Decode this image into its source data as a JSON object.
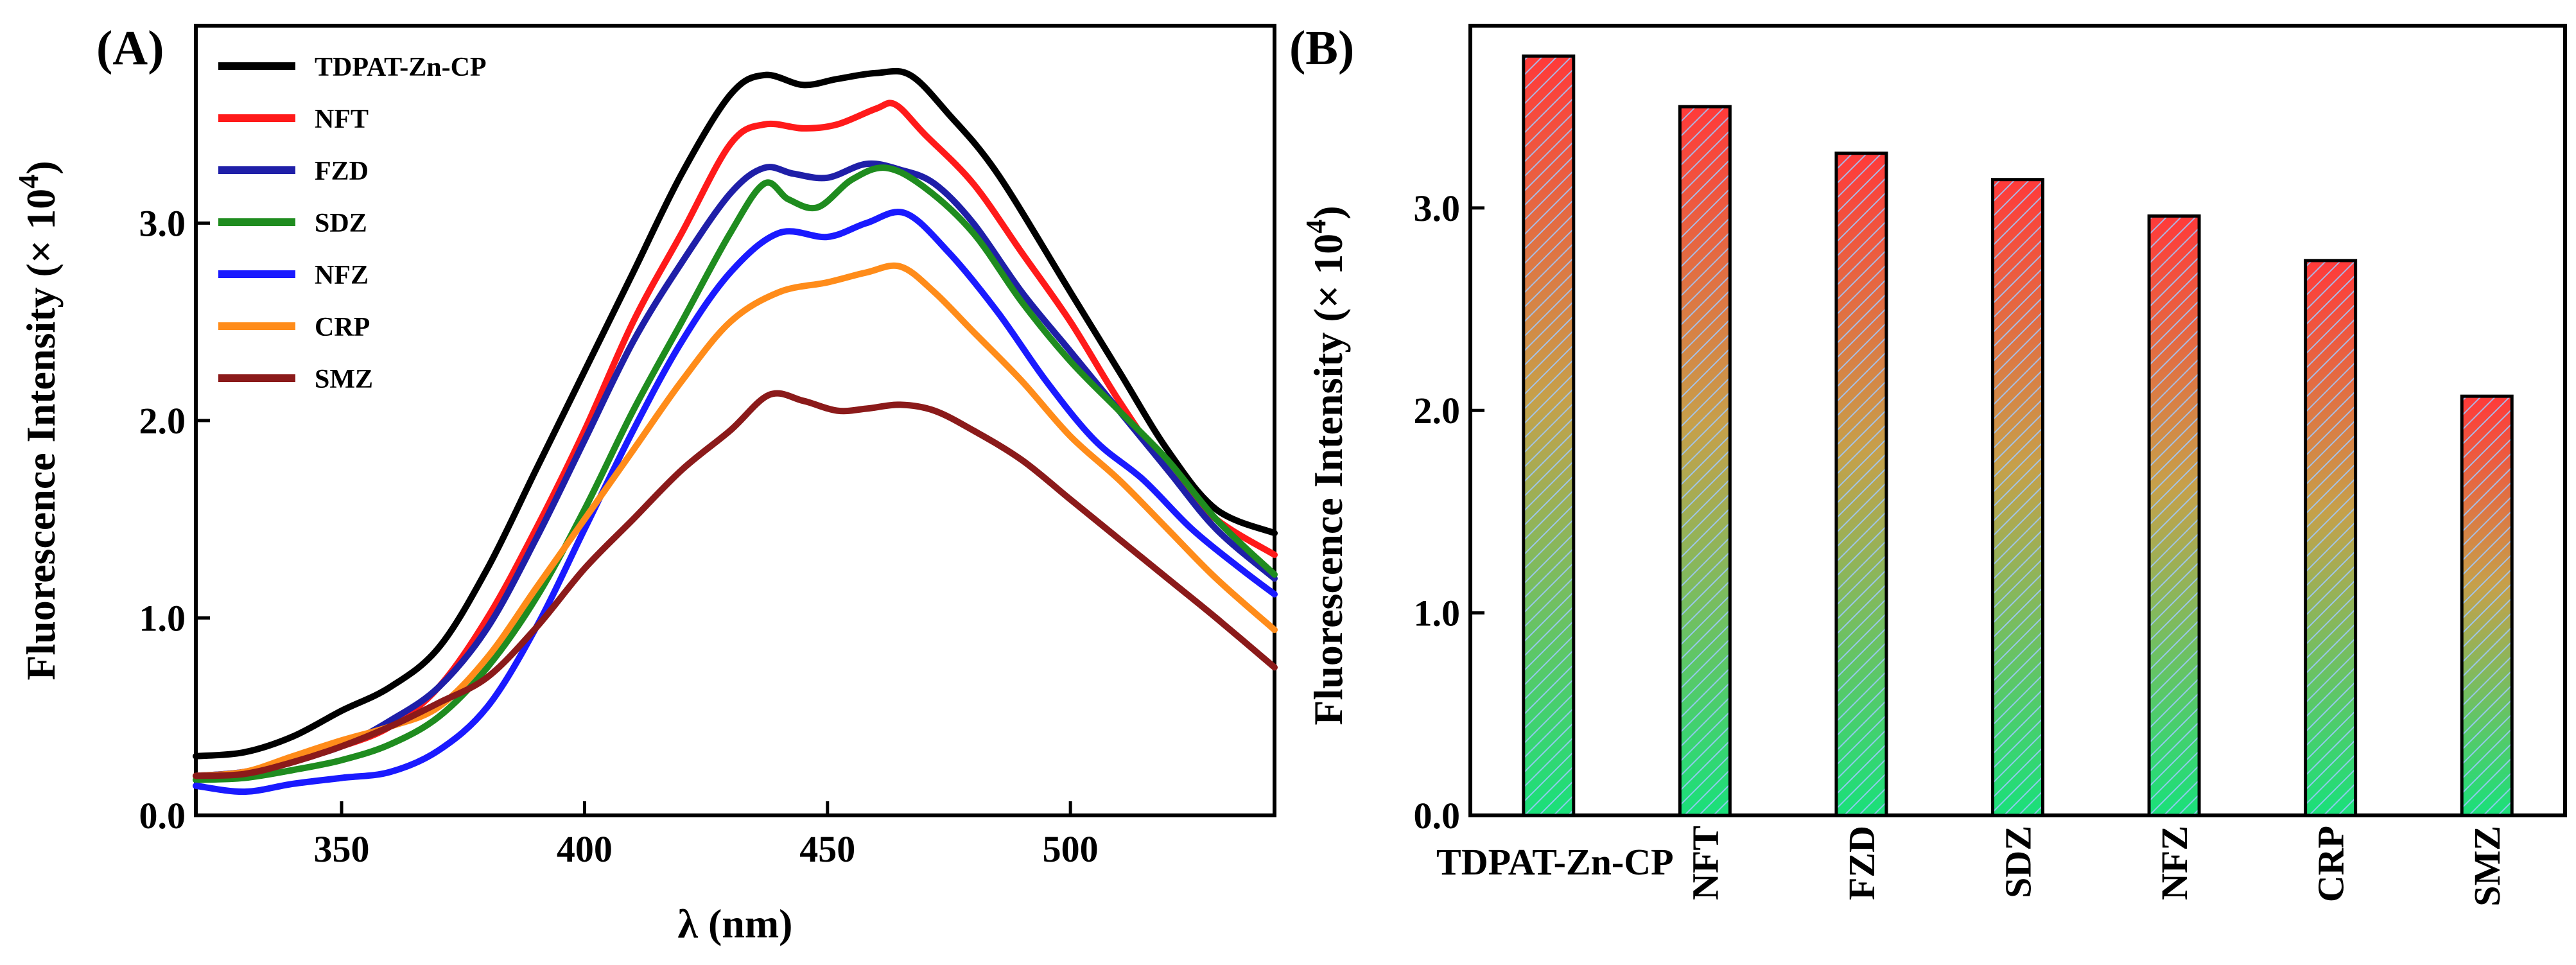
{
  "chart_data": [
    {
      "panel": "(A)",
      "type": "line",
      "xlabel": "λ (nm)",
      "ylabel": "Fluorescence Intensity (× 10",
      "ylabel_sup": "4",
      "xlim": [
        320,
        542
      ],
      "ylim": [
        0,
        4.0
      ],
      "xticks": [
        350,
        400,
        450,
        500
      ],
      "xtick_labels": [
        "350",
        "400",
        "450",
        "500"
      ],
      "yticks": [
        0,
        1,
        2,
        3
      ],
      "ytick_labels": [
        "0.0",
        "1.0",
        "2.0",
        "3.0"
      ],
      "legend_position": "top-left",
      "series": [
        {
          "name": "TDPAT-Zn-CP",
          "color": "#000000",
          "x": [
            320,
            330,
            340,
            350,
            360,
            370,
            380,
            390,
            400,
            410,
            420,
            430,
            437,
            445,
            452,
            460,
            467,
            475,
            485,
            500,
            510,
            520,
            530,
            542
          ],
          "y": [
            0.3,
            0.32,
            0.4,
            0.53,
            0.65,
            0.85,
            1.25,
            1.75,
            2.25,
            2.75,
            3.25,
            3.65,
            3.75,
            3.7,
            3.73,
            3.76,
            3.75,
            3.55,
            3.25,
            2.65,
            2.25,
            1.85,
            1.55,
            1.43
          ]
        },
        {
          "name": "NFT",
          "color": "#ff1a1a",
          "x": [
            320,
            330,
            340,
            350,
            360,
            370,
            380,
            390,
            400,
            410,
            420,
            430,
            437,
            445,
            452,
            460,
            464,
            470,
            480,
            490,
            500,
            510,
            520,
            530,
            542
          ],
          "y": [
            0.2,
            0.22,
            0.28,
            0.35,
            0.45,
            0.65,
            1.0,
            1.45,
            1.95,
            2.5,
            2.95,
            3.4,
            3.5,
            3.48,
            3.5,
            3.58,
            3.6,
            3.45,
            3.2,
            2.85,
            2.5,
            2.1,
            1.75,
            1.5,
            1.32
          ]
        },
        {
          "name": "FZD",
          "color": "#1f1fa8",
          "x": [
            320,
            330,
            340,
            350,
            360,
            370,
            380,
            390,
            400,
            410,
            420,
            430,
            437,
            443,
            450,
            458,
            465,
            472,
            480,
            490,
            500,
            510,
            520,
            530,
            542
          ],
          "y": [
            0.2,
            0.22,
            0.28,
            0.35,
            0.48,
            0.65,
            0.95,
            1.4,
            1.9,
            2.4,
            2.8,
            3.15,
            3.28,
            3.25,
            3.23,
            3.3,
            3.27,
            3.2,
            3.0,
            2.65,
            2.35,
            2.05,
            1.75,
            1.45,
            1.2
          ]
        },
        {
          "name": "SDZ",
          "color": "#1f8c1f",
          "x": [
            320,
            330,
            340,
            350,
            360,
            370,
            380,
            390,
            400,
            410,
            420,
            430,
            437,
            442,
            448,
            455,
            462,
            470,
            480,
            490,
            500,
            510,
            520,
            530,
            542
          ],
          "y": [
            0.18,
            0.19,
            0.23,
            0.28,
            0.36,
            0.5,
            0.75,
            1.1,
            1.55,
            2.05,
            2.5,
            2.95,
            3.2,
            3.12,
            3.08,
            3.22,
            3.28,
            3.18,
            2.95,
            2.6,
            2.3,
            2.05,
            1.8,
            1.5,
            1.22
          ]
        },
        {
          "name": "NFZ",
          "color": "#1a1aff",
          "x": [
            320,
            330,
            340,
            350,
            360,
            370,
            380,
            390,
            400,
            410,
            420,
            430,
            440,
            450,
            458,
            466,
            475,
            485,
            495,
            505,
            515,
            525,
            535,
            542
          ],
          "y": [
            0.15,
            0.12,
            0.16,
            0.19,
            0.22,
            0.33,
            0.55,
            0.95,
            1.45,
            1.95,
            2.4,
            2.75,
            2.95,
            2.93,
            3.0,
            3.05,
            2.85,
            2.55,
            2.2,
            1.9,
            1.7,
            1.45,
            1.25,
            1.12
          ]
        },
        {
          "name": "CRP",
          "color": "#ff8c1a",
          "x": [
            320,
            330,
            340,
            350,
            360,
            370,
            380,
            390,
            400,
            410,
            420,
            430,
            440,
            450,
            458,
            465,
            472,
            480,
            490,
            500,
            510,
            520,
            530,
            542
          ],
          "y": [
            0.2,
            0.22,
            0.3,
            0.38,
            0.45,
            0.55,
            0.8,
            1.15,
            1.5,
            1.85,
            2.2,
            2.5,
            2.65,
            2.7,
            2.75,
            2.78,
            2.65,
            2.45,
            2.2,
            1.92,
            1.7,
            1.45,
            1.2,
            0.94
          ]
        },
        {
          "name": "SMZ",
          "color": "#8b1a1a",
          "x": [
            320,
            330,
            340,
            350,
            360,
            370,
            380,
            390,
            400,
            410,
            420,
            430,
            438,
            445,
            452,
            458,
            465,
            472,
            480,
            490,
            500,
            510,
            520,
            530,
            542
          ],
          "y": [
            0.2,
            0.21,
            0.27,
            0.35,
            0.45,
            0.57,
            0.7,
            0.95,
            1.25,
            1.5,
            1.75,
            1.95,
            2.13,
            2.1,
            2.05,
            2.06,
            2.08,
            2.05,
            1.95,
            1.8,
            1.6,
            1.4,
            1.2,
            1.0,
            0.75
          ]
        }
      ]
    },
    {
      "panel": "(B)",
      "type": "bar",
      "ylabel": "Fluorescence Intensity (× 10",
      "ylabel_sup": "4",
      "ylim": [
        0,
        3.9
      ],
      "yticks": [
        0,
        1,
        2,
        3
      ],
      "ytick_labels": [
        "0.0",
        "1.0",
        "2.0",
        "3.0"
      ],
      "categories": [
        "TDPAT-Zn-CP",
        "NFT",
        "FZD",
        "SDZ",
        "NFZ",
        "CRP",
        "SMZ"
      ],
      "values": [
        3.75,
        3.5,
        3.27,
        3.14,
        2.96,
        2.74,
        2.07
      ],
      "bar_fill": {
        "top": "#ff3a3a",
        "bottom": "#19e07a",
        "hatch": "#9fc9ff"
      }
    }
  ]
}
